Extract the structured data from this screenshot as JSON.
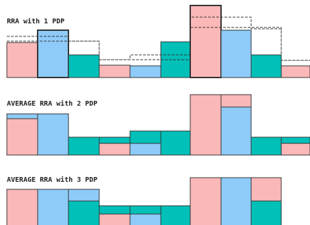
{
  "panels": [
    {
      "title": "RRA with 1 PDP"
    },
    {
      "title": "AVERAGE RRA with 2 PDP"
    },
    {
      "title": "AVERAGE RRA with 3 PDP"
    }
  ]
}
